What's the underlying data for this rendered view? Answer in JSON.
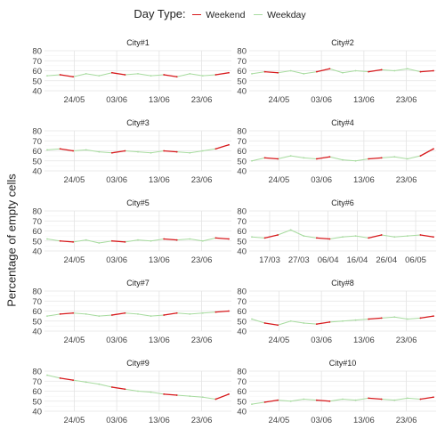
{
  "legend": {
    "title": "Day Type:",
    "items": [
      {
        "label": "Weekend",
        "color": "#d7191c"
      },
      {
        "label": "Weekday",
        "color": "#a8dca0"
      }
    ]
  },
  "ylabel": "Percentage of empty cells",
  "chart_data": {
    "type": "line",
    "layout": "facet-grid 5x2",
    "grid": true,
    "legend_position": "top",
    "ylabel": "Percentage of empty cells",
    "panels": [
      {
        "title": "City#1",
        "ylim": [
          40,
          80
        ],
        "y_ticks": [
          40,
          50,
          60,
          70,
          80
        ],
        "x_ticks": [
          "24/05",
          "03/06",
          "13/06",
          "23/06"
        ],
        "x": [
          0,
          4,
          8,
          12,
          16,
          20,
          24,
          28,
          32,
          36,
          40,
          44,
          48,
          52,
          56
        ],
        "y": [
          55,
          56,
          54,
          57,
          55,
          58,
          56,
          57,
          55,
          56,
          54,
          57,
          55,
          56,
          58
        ]
      },
      {
        "title": "City#2",
        "ylim": [
          40,
          80
        ],
        "y_ticks": [
          40,
          50,
          60,
          70,
          80
        ],
        "x_ticks": [
          "24/05",
          "03/06",
          "13/06",
          "23/06"
        ],
        "x": [
          0,
          4,
          8,
          12,
          16,
          20,
          24,
          28,
          32,
          36,
          40,
          44,
          48,
          52,
          56
        ],
        "y": [
          57,
          59,
          58,
          60,
          57,
          59,
          62,
          58,
          60,
          59,
          61,
          60,
          62,
          59,
          60
        ]
      },
      {
        "title": "City#3",
        "ylim": [
          40,
          80
        ],
        "y_ticks": [
          40,
          50,
          60,
          70,
          80
        ],
        "x_ticks": [
          "24/05",
          "03/06",
          "13/06",
          "23/06"
        ],
        "x": [
          0,
          4,
          8,
          12,
          16,
          20,
          24,
          28,
          32,
          36,
          40,
          44,
          48,
          52,
          56
        ],
        "y": [
          61,
          62,
          60,
          61,
          59,
          58,
          60,
          59,
          58,
          60,
          59,
          58,
          60,
          62,
          66
        ]
      },
      {
        "title": "City#4",
        "ylim": [
          40,
          80
        ],
        "y_ticks": [
          40,
          50,
          60,
          70,
          80
        ],
        "x_ticks": [
          "24/05",
          "03/06",
          "13/06",
          "23/06"
        ],
        "x": [
          0,
          4,
          8,
          12,
          16,
          20,
          24,
          28,
          32,
          36,
          40,
          44,
          48,
          52,
          56
        ],
        "y": [
          50,
          53,
          52,
          55,
          53,
          52,
          54,
          51,
          50,
          52,
          53,
          54,
          52,
          55,
          62
        ]
      },
      {
        "title": "City#5",
        "ylim": [
          40,
          80
        ],
        "y_ticks": [
          40,
          50,
          60,
          70,
          80
        ],
        "x_ticks": [
          "24/05",
          "03/06",
          "13/06",
          "23/06"
        ],
        "x": [
          0,
          4,
          8,
          12,
          16,
          20,
          24,
          28,
          32,
          36,
          40,
          44,
          48,
          52,
          56
        ],
        "y": [
          52,
          50,
          49,
          51,
          48,
          50,
          49,
          51,
          50,
          52,
          51,
          52,
          50,
          53,
          52
        ]
      },
      {
        "title": "City#6",
        "ylim": [
          40,
          80
        ],
        "y_ticks": [
          40,
          50,
          60,
          70,
          80
        ],
        "x_ticks": [
          "17/03",
          "27/03",
          "06/04",
          "16/04",
          "26/04",
          "06/05"
        ],
        "x": [
          0,
          4,
          8,
          12,
          16,
          20,
          24,
          28,
          32,
          36,
          40,
          44,
          48,
          52,
          56
        ],
        "y": [
          54,
          53,
          56,
          61,
          55,
          53,
          52,
          54,
          55,
          53,
          56,
          54,
          55,
          56,
          54
        ]
      },
      {
        "title": "City#7",
        "ylim": [
          40,
          80
        ],
        "y_ticks": [
          40,
          50,
          60,
          70,
          80
        ],
        "x_ticks": [
          "24/05",
          "03/06",
          "13/06",
          "23/06"
        ],
        "x": [
          0,
          4,
          8,
          12,
          16,
          20,
          24,
          28,
          32,
          36,
          40,
          44,
          48,
          52,
          56
        ],
        "y": [
          55,
          57,
          58,
          57,
          55,
          56,
          58,
          57,
          55,
          56,
          58,
          57,
          58,
          59,
          60
        ]
      },
      {
        "title": "City#8",
        "ylim": [
          40,
          80
        ],
        "y_ticks": [
          40,
          50,
          60,
          70,
          80
        ],
        "x_ticks": [
          "24/05",
          "03/06",
          "13/06",
          "23/06"
        ],
        "x": [
          0,
          4,
          8,
          12,
          16,
          20,
          24,
          28,
          32,
          36,
          40,
          44,
          48,
          52,
          56
        ],
        "y": [
          52,
          48,
          46,
          50,
          48,
          47,
          49,
          50,
          51,
          52,
          53,
          54,
          52,
          53,
          55
        ]
      },
      {
        "title": "City#9",
        "ylim": [
          40,
          80
        ],
        "y_ticks": [
          40,
          50,
          60,
          70,
          80
        ],
        "x_ticks": [
          "24/05",
          "03/06",
          "13/06",
          "23/06"
        ],
        "x": [
          0,
          4,
          8,
          12,
          16,
          20,
          24,
          28,
          32,
          36,
          40,
          44,
          48,
          52,
          56
        ],
        "y": [
          76,
          73,
          71,
          69,
          67,
          64,
          62,
          60,
          59,
          57,
          56,
          55,
          54,
          52,
          57
        ]
      },
      {
        "title": "City#10",
        "ylim": [
          40,
          80
        ],
        "y_ticks": [
          40,
          50,
          60,
          70,
          80
        ],
        "x_ticks": [
          "24/05",
          "03/06",
          "13/06",
          "23/06"
        ],
        "x": [
          0,
          4,
          8,
          12,
          16,
          20,
          24,
          28,
          32,
          36,
          40,
          44,
          48,
          52,
          56
        ],
        "y": [
          47,
          49,
          51,
          50,
          52,
          51,
          50,
          52,
          51,
          53,
          52,
          51,
          53,
          52,
          54
        ]
      }
    ]
  }
}
